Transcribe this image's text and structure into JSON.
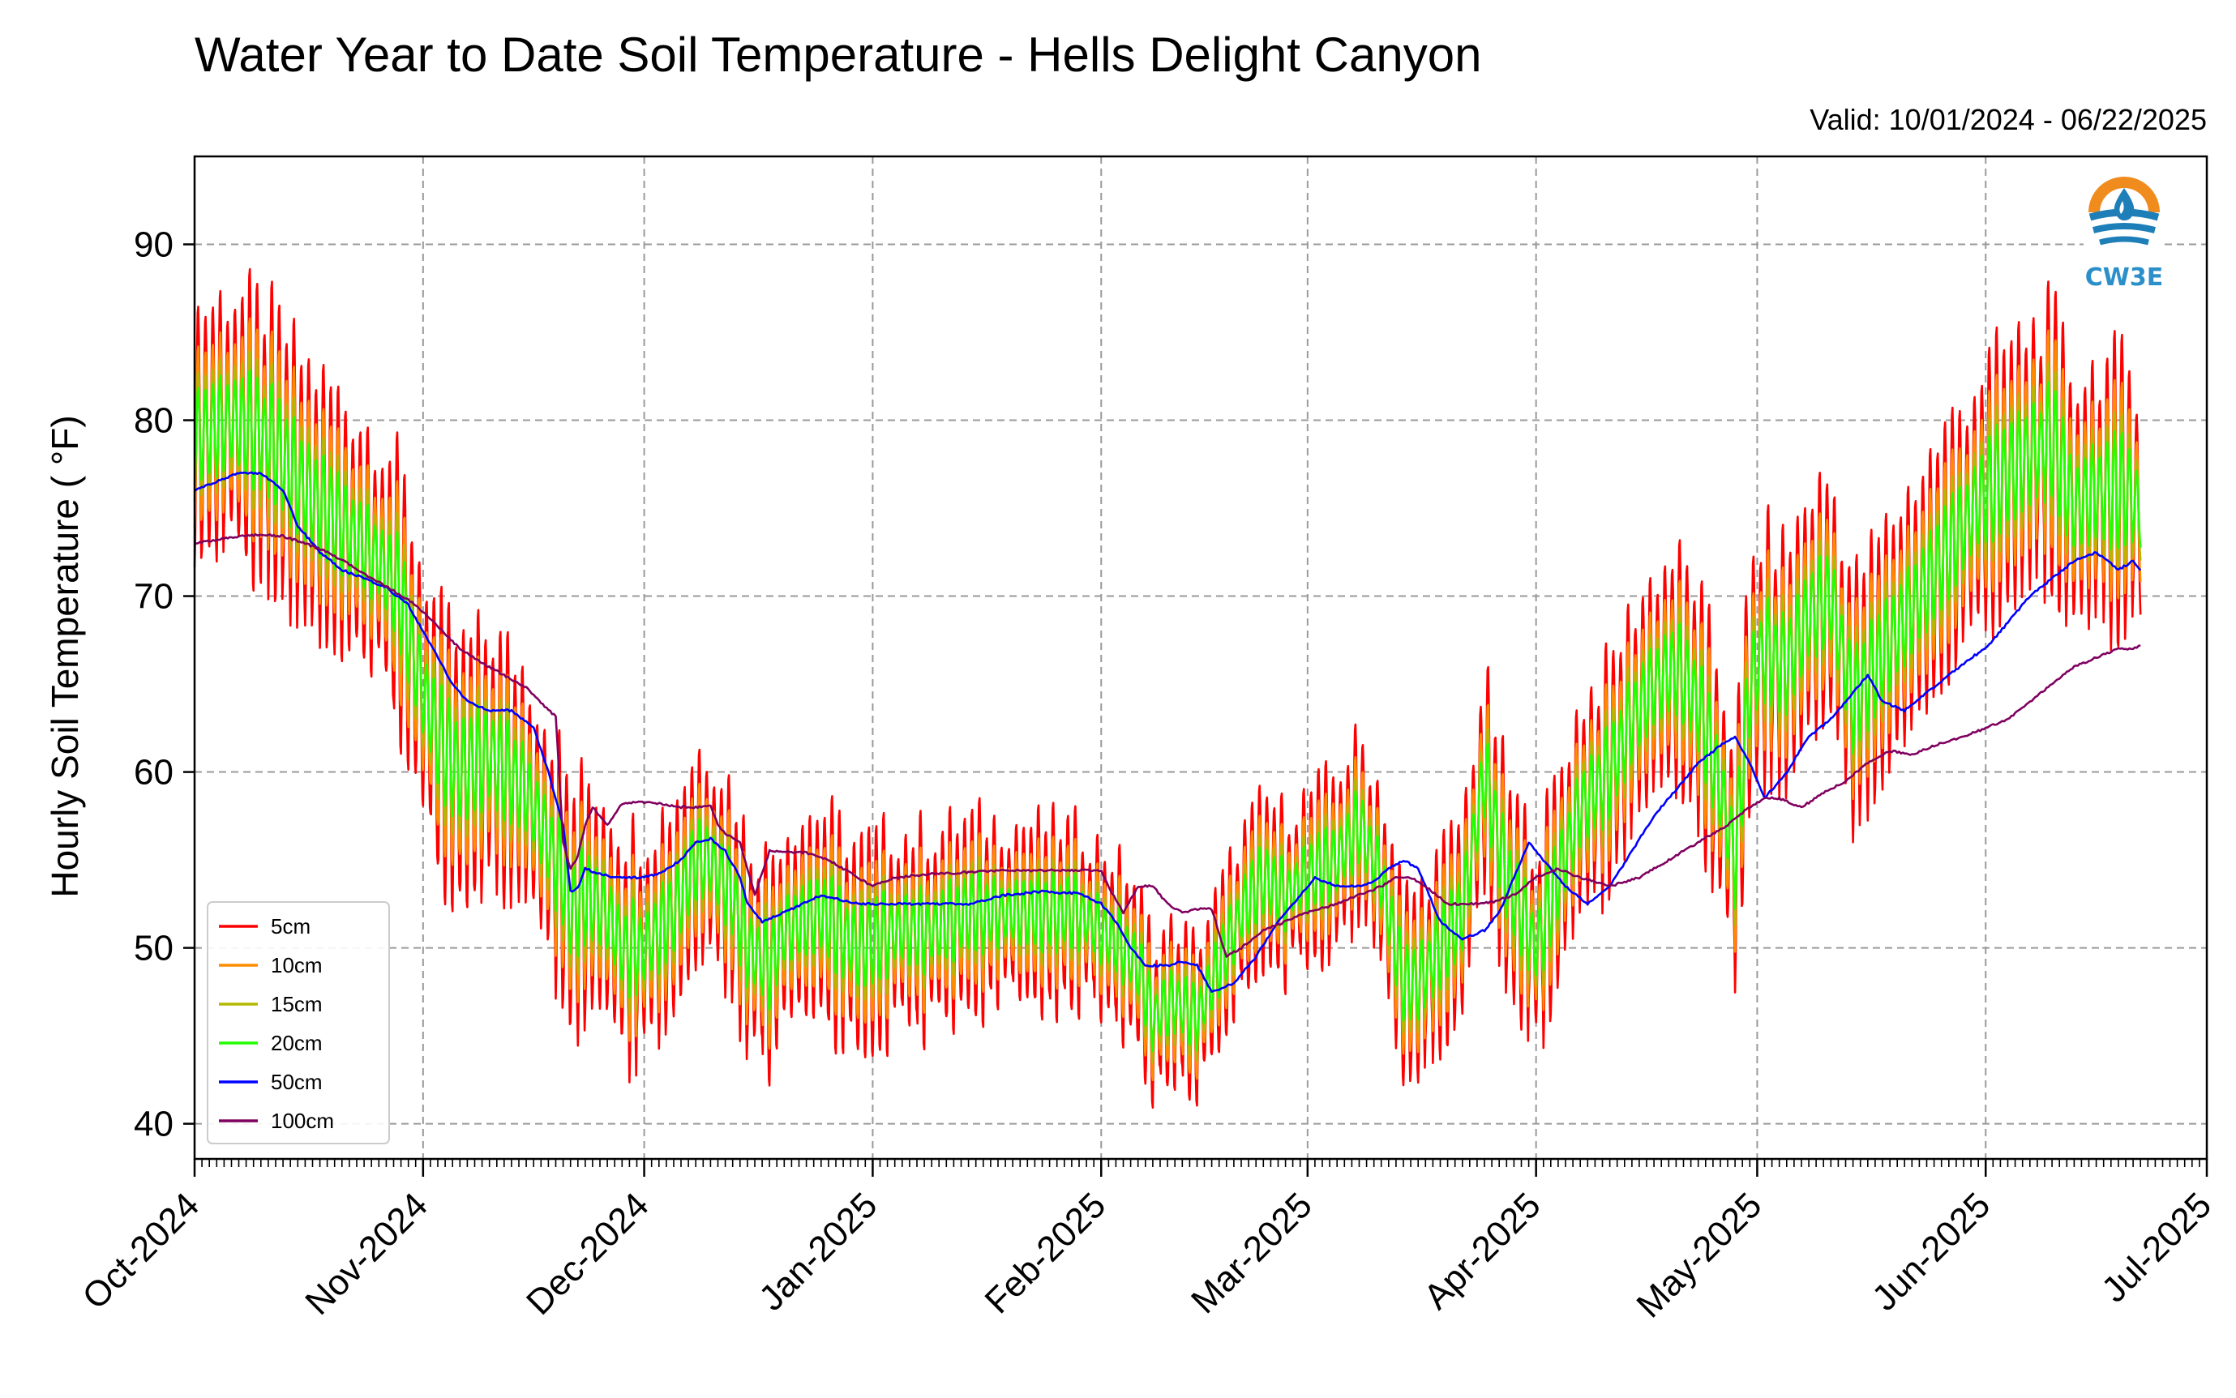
{
  "chart_data": {
    "type": "line",
    "title": "Water Year to Date Soil Temperature - Hells Delight Canyon",
    "subtitle": "Valid: 10/01/2024 - 06/22/2025",
    "ylabel": "Hourly Soil Temperature ( °F)",
    "xlabel": "",
    "ylim": [
      38,
      95
    ],
    "yticks": [
      40,
      50,
      60,
      70,
      80,
      90
    ],
    "xrange_days": [
      0,
      273
    ],
    "xticks": [
      {
        "day": 0,
        "label": "Oct-2024"
      },
      {
        "day": 31,
        "label": "Nov-2024"
      },
      {
        "day": 61,
        "label": "Dec-2024"
      },
      {
        "day": 92,
        "label": "Jan-2025"
      },
      {
        "day": 123,
        "label": "Feb-2025"
      },
      {
        "day": 151,
        "label": "Mar-2025"
      },
      {
        "day": 182,
        "label": "Apr-2025"
      },
      {
        "day": 212,
        "label": "May-2025"
      },
      {
        "day": 243,
        "label": "Jun-2025"
      },
      {
        "day": 273,
        "label": "Jul-2025"
      }
    ],
    "grid": true,
    "legend_position": "lower-left",
    "series_mean_knots": {
      "days": [
        0,
        5,
        10,
        15,
        20,
        25,
        28,
        30,
        33,
        36,
        40,
        45,
        48,
        50,
        51,
        53,
        56,
        58,
        61,
        65,
        68,
        70,
        73,
        75,
        78,
        80,
        85,
        90,
        95,
        100,
        105,
        110,
        115,
        120,
        123,
        126,
        128,
        130,
        133,
        136,
        139,
        142,
        145,
        148,
        151,
        155,
        158,
        161,
        164,
        166,
        169,
        172,
        175,
        178,
        182,
        185,
        188,
        192,
        195,
        198,
        201,
        204,
        207,
        209,
        211,
        213,
        216,
        219,
        222,
        225,
        228,
        231,
        234,
        237,
        240,
        243,
        246,
        249,
        252,
        255,
        258,
        260,
        262,
        264
      ],
      "values": [
        79,
        80,
        79,
        76,
        74,
        72,
        70,
        66,
        62,
        60,
        61,
        59,
        56,
        54,
        52,
        53,
        52,
        50,
        50,
        52,
        55,
        55,
        53,
        50,
        49,
        51,
        52,
        50,
        51,
        51,
        52,
        52,
        52,
        52,
        51,
        50,
        49,
        46,
        47,
        46,
        49,
        52,
        54,
        53,
        54,
        55,
        57,
        54,
        48,
        48,
        50,
        52,
        60,
        54,
        50,
        54,
        58,
        60,
        63,
        65,
        66,
        64,
        59,
        55,
        65,
        67,
        66,
        69,
        70,
        64,
        66,
        68,
        70,
        72,
        74,
        76,
        77,
        78,
        79,
        75,
        76,
        76,
        76,
        75
      ]
    },
    "series": [
      {
        "name": "5cm",
        "color": "#ff0000",
        "amp": 6.5,
        "offset": 0
      },
      {
        "name": "10cm",
        "color": "#ff8c00",
        "amp": 4.5,
        "offset": 0
      },
      {
        "name": "15cm",
        "color": "#b5b800",
        "amp": 3.2,
        "offset": 0
      },
      {
        "name": "20cm",
        "color": "#22ff00",
        "amp": 2.4,
        "offset": 0
      },
      {
        "name": "50cm",
        "color": "#0000ff",
        "days": [
          0,
          3,
          6,
          9,
          12,
          14,
          17,
          20,
          23,
          26,
          29,
          31,
          33,
          35,
          37,
          40,
          43,
          46,
          48,
          50,
          51,
          52,
          53,
          55,
          57,
          60,
          63,
          66,
          68,
          70,
          72,
          74,
          75,
          77,
          80,
          85,
          90,
          95,
          100,
          105,
          110,
          115,
          120,
          123,
          125,
          127,
          129,
          132,
          134,
          136,
          138,
          141,
          144,
          147,
          150,
          152,
          155,
          158,
          160,
          162,
          164,
          166,
          169,
          172,
          175,
          177,
          179,
          181,
          183,
          186,
          189,
          192,
          195,
          198,
          201,
          204,
          207,
          209,
          211,
          213,
          216,
          219,
          222,
          225,
          227,
          229,
          232,
          235,
          238,
          241,
          243,
          246,
          249,
          252,
          255,
          258,
          261,
          263,
          264
        ],
        "values": [
          76,
          76.5,
          77,
          77,
          76,
          74,
          72.5,
          71.5,
          71,
          70.5,
          69.5,
          68,
          66.5,
          65,
          64,
          63.5,
          63.5,
          62.5,
          60,
          57,
          53.2,
          53.4,
          54.5,
          54.2,
          54,
          54,
          54.2,
          55,
          56,
          56.2,
          55.5,
          54,
          52.5,
          51.5,
          52,
          53,
          52.5,
          52.5,
          52.5,
          52.5,
          53,
          53.2,
          53.1,
          52.5,
          51.5,
          50,
          49,
          49,
          49.2,
          49,
          47.5,
          48,
          49.5,
          51.5,
          53,
          54,
          53.5,
          53.5,
          53.8,
          54.5,
          55,
          54.5,
          51.5,
          50.5,
          51,
          52,
          54,
          56,
          55,
          53.5,
          52.5,
          53.5,
          55.5,
          57.5,
          59,
          60.5,
          61.5,
          62,
          60.5,
          58.5,
          60,
          62,
          63,
          64.5,
          65.5,
          64,
          63.5,
          64.5,
          65.5,
          66.5,
          67,
          68.5,
          70,
          71,
          72,
          72.5,
          71.5,
          72,
          71.5
        ]
      },
      {
        "name": "100cm",
        "color": "#800060",
        "days": [
          0,
          3,
          6,
          9,
          12,
          15,
          18,
          21,
          24,
          27,
          30,
          33,
          36,
          39,
          42,
          45,
          48,
          49,
          50,
          51,
          52,
          53,
          54,
          56,
          58,
          60,
          63,
          66,
          68,
          70,
          71,
          72,
          74,
          75,
          76,
          78,
          80,
          83,
          86,
          90,
          92,
          95,
          100,
          105,
          110,
          115,
          120,
          123,
          124,
          126,
          128,
          130,
          132,
          134,
          136,
          138,
          140,
          142,
          145,
          148,
          151,
          155,
          158,
          161,
          163,
          165,
          167,
          170,
          173,
          176,
          179,
          182,
          185,
          188,
          192,
          196,
          200,
          204,
          208,
          211,
          213,
          215,
          218,
          221,
          224,
          227,
          230,
          233,
          236,
          240,
          243,
          246,
          249,
          252,
          255,
          258,
          261,
          263,
          264
        ],
        "values": [
          73,
          73.2,
          73.4,
          73.5,
          73.4,
          73,
          72.5,
          71.8,
          71,
          70.3,
          69.5,
          68.3,
          67,
          66.2,
          65.5,
          64.8,
          63.5,
          63.2,
          56,
          54.5,
          55.2,
          57,
          58,
          57,
          58.2,
          58.3,
          58.2,
          58,
          58,
          58.1,
          57,
          56.5,
          56,
          54.5,
          53,
          55.5,
          55.5,
          55.4,
          55,
          54,
          53.5,
          54,
          54.2,
          54.3,
          54.4,
          54.4,
          54.4,
          54.4,
          53.5,
          52,
          53.5,
          53.5,
          52.5,
          52,
          52.2,
          52.2,
          49.5,
          50,
          51,
          51.5,
          52,
          52.5,
          53,
          53.5,
          54,
          54,
          53.5,
          52.5,
          52.5,
          52.6,
          53,
          54,
          54.5,
          54,
          53.5,
          54,
          55,
          56,
          57,
          58,
          58.5,
          58.5,
          58,
          58.8,
          59.5,
          60.5,
          61.2,
          61,
          61.5,
          62,
          62.5,
          63,
          64,
          65,
          66,
          66.5,
          67,
          67,
          67.2
        ]
      }
    ]
  },
  "logo": {
    "text": "CW3E",
    "icon": "water-drop-logo-icon"
  }
}
